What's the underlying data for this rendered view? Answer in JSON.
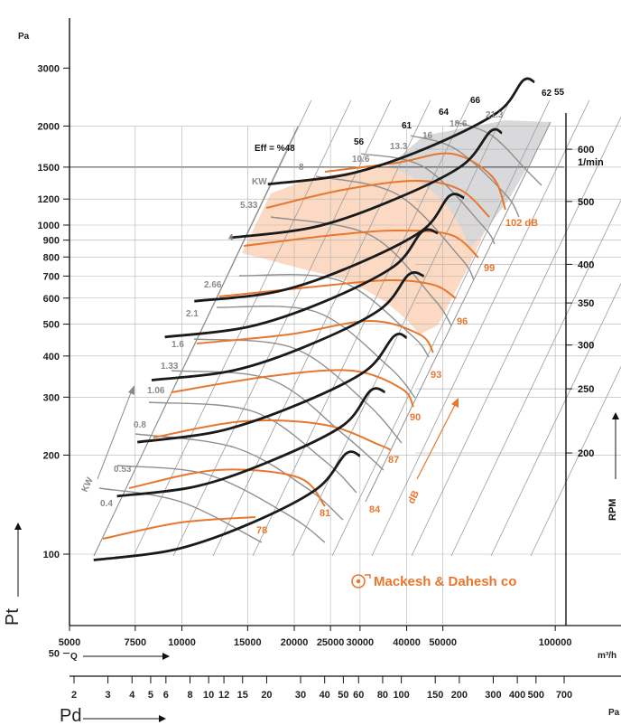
{
  "chart_data": {
    "type": "line",
    "title": "",
    "x_axis": {
      "quantity": "Q",
      "unit": "m³/h",
      "scale": "log",
      "range": [
        5000,
        150000
      ],
      "ticks": [
        5000,
        7500,
        10000,
        15000,
        20000,
        25000,
        30000,
        40000,
        50000,
        100000
      ]
    },
    "y_axis": {
      "quantity": "Pt",
      "unit": "Pa",
      "scale": "log",
      "range": [
        50,
        3500
      ],
      "ticks": [
        50,
        100,
        200,
        300,
        400,
        500,
        600,
        700,
        800,
        900,
        1000,
        1200,
        1500,
        2000,
        3000
      ]
    },
    "pd_axis": {
      "quantity": "Pd",
      "unit": "Pa",
      "ticks": [
        2,
        3,
        4,
        5,
        6,
        8,
        10,
        12,
        15,
        20,
        30,
        40,
        50,
        60,
        80,
        100,
        150,
        200,
        300,
        400,
        500,
        700
      ]
    },
    "rpm_axis": {
      "label": "RPM",
      "ticks": [
        {
          "rpm": "600",
          "unit": "1/min",
          "pt": 1700
        },
        {
          "rpm": "500",
          "pt": 1180
        },
        {
          "rpm": "400",
          "pt": 760
        },
        {
          "rpm": "350",
          "pt": 580
        },
        {
          "rpm": "300",
          "pt": 432
        },
        {
          "rpm": "250",
          "pt": 318
        },
        {
          "rpm": "200",
          "pt": 203
        }
      ]
    },
    "fan_curves_black": [
      {
        "rpm": 200,
        "points": [
          [
            5800,
            96
          ],
          [
            9500,
            103
          ],
          [
            15000,
            123
          ],
          [
            23000,
            158
          ],
          [
            27500,
            202
          ],
          [
            30000,
            199
          ]
        ]
      },
      {
        "rpm": 250,
        "points": [
          [
            6700,
            150
          ],
          [
            11000,
            161
          ],
          [
            17500,
            193
          ],
          [
            27000,
            246
          ],
          [
            32000,
            314
          ],
          [
            35000,
            311
          ]
        ]
      },
      {
        "rpm": 300,
        "points": [
          [
            7600,
            219
          ],
          [
            12500,
            236
          ],
          [
            20000,
            282
          ],
          [
            31000,
            360
          ],
          [
            37000,
            460
          ],
          [
            40000,
            455
          ]
        ]
      },
      {
        "rpm": 350,
        "points": [
          [
            8300,
            338
          ],
          [
            13800,
            362
          ],
          [
            22000,
            433
          ],
          [
            34000,
            555
          ],
          [
            40500,
            707
          ],
          [
            44500,
            700
          ]
        ]
      },
      {
        "rpm": 400,
        "points": [
          [
            9000,
            457
          ],
          [
            15000,
            490
          ],
          [
            24000,
            585
          ],
          [
            37000,
            750
          ],
          [
            44000,
            955
          ],
          [
            48500,
            945
          ]
        ]
      },
      {
        "rpm": 450,
        "points": [
          [
            10800,
            587
          ],
          [
            18000,
            628
          ],
          [
            28500,
            750
          ],
          [
            44000,
            962
          ],
          [
            52000,
            1225
          ],
          [
            57000,
            1210
          ]
        ]
      },
      {
        "rpm": 500,
        "points": [
          [
            13500,
            915
          ],
          [
            22500,
            985
          ],
          [
            36000,
            1180
          ],
          [
            56000,
            1510
          ],
          [
            67000,
            1925
          ],
          [
            72000,
            1905
          ]
        ]
      },
      {
        "rpm": 600,
        "points": [
          [
            17000,
            1331
          ],
          [
            28000,
            1430
          ],
          [
            45000,
            1710
          ],
          [
            70000,
            2200
          ],
          [
            82000,
            2750
          ],
          [
            88000,
            2720
          ]
        ]
      }
    ],
    "power_labels_kw": [
      "KW",
      "8",
      "5.33",
      "4",
      "2.66",
      "2.1",
      "1.6",
      "1.33",
      "1.06",
      "0.8",
      "0.53",
      "0.4"
    ],
    "efficiency_labels": [
      "Eff = %48",
      "56",
      "61",
      "64",
      "66",
      "62",
      "55"
    ],
    "efficiency_kw_labels": [
      "10.6",
      "13.3",
      "16",
      "18.6",
      "21.3"
    ],
    "noise_labels_db": [
      "78",
      "81",
      "84",
      "87",
      "90",
      "93",
      "96",
      "99",
      "102 dB"
    ],
    "annotations": [
      "KW",
      "dB"
    ]
  },
  "labels": {
    "y_unit": "Pa",
    "pt_axis": "Pt",
    "pd_axis": "Pd",
    "q_label": "Q",
    "q_unit": "m³/h",
    "pd_unit": "Pa",
    "rpm": "RPM",
    "brand": "Mackesh & Dahesh co"
  },
  "colors": {
    "fan_curve": "#1a1a1a",
    "noise": "#e8772e",
    "power": "#8a8a8a",
    "shade_orange": "#fbd5bd",
    "shade_gray": "#d7d7d9",
    "grid": "#b3b3b3"
  }
}
